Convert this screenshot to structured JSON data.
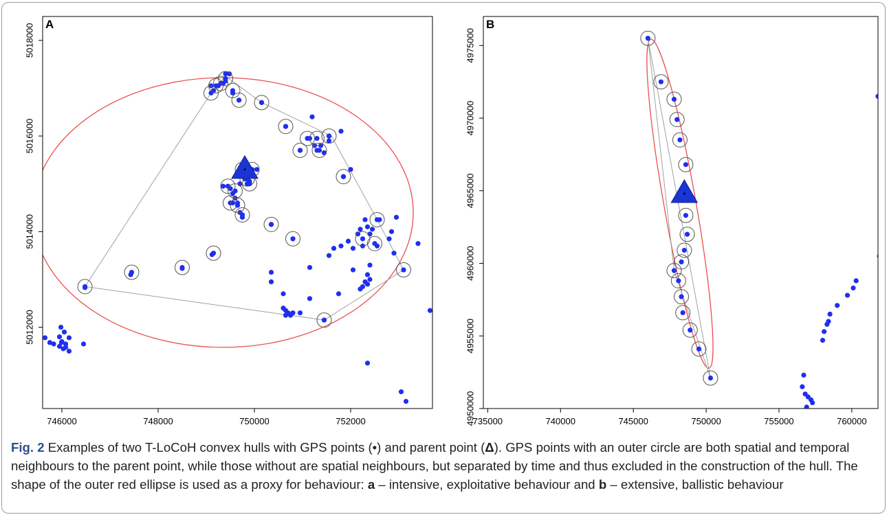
{
  "figure": {
    "colors": {
      "point": "#1f2ff0",
      "parent": "#1a35d6",
      "neighbour_ring": "#555555",
      "hull_line": "#a0a0a0",
      "ellipse": "#e8504a",
      "axis": "#000000"
    },
    "chart_data": [
      {
        "type": "scatter",
        "panel_label": "A",
        "title": "",
        "xlabel": "",
        "ylabel": "",
        "xlim": [
          745600,
          753700
        ],
        "ylim": [
          5010300,
          5018500
        ],
        "x_ticks": [
          746000,
          748000,
          750000,
          752000
        ],
        "y_ticks": [
          5012000,
          5014000,
          5016000,
          5018000
        ],
        "series": [
          {
            "marker": "point",
            "points": [
              [
                745650,
                5011780
              ],
              [
                745750,
                5011680
              ],
              [
                745830,
                5011650
              ],
              [
                745980,
                5012000
              ],
              [
                746050,
                5011900
              ],
              [
                745950,
                5011800
              ],
              [
                746000,
                5011700
              ],
              [
                746080,
                5011650
              ],
              [
                745950,
                5011600
              ],
              [
                746030,
                5011550
              ],
              [
                746080,
                5011580
              ],
              [
                746150,
                5011500
              ],
              [
                745990,
                5011680
              ],
              [
                746150,
                5011780
              ],
              [
                746450,
                5011650
              ],
              [
                746480,
                5012830
              ],
              [
                747430,
                5013100
              ],
              [
                748500,
                5013230
              ],
              [
                749120,
                5013520
              ],
              [
                749100,
                5017050
              ],
              [
                749150,
                5016950
              ],
              [
                749250,
                5017050
              ],
              [
                749350,
                5017100
              ],
              [
                749400,
                5017300
              ],
              [
                749480,
                5017300
              ],
              [
                749550,
                5016900
              ],
              [
                749680,
                5016750
              ],
              [
                749400,
                5017150
              ],
              [
                750150,
                5016700
              ],
              [
                750650,
                5016200
              ],
              [
                750950,
                5015700
              ],
              [
                751150,
                5015950
              ],
              [
                751200,
                5016400
              ],
              [
                751250,
                5015800
              ],
              [
                751300,
                5015700
              ],
              [
                751380,
                5015800
              ],
              [
                751450,
                5015650
              ],
              [
                751550,
                5016000
              ],
              [
                751800,
                5016100
              ],
              [
                751550,
                5015900
              ],
              [
                751850,
                5015150
              ],
              [
                752000,
                5015300
              ],
              [
                749350,
                5014950
              ],
              [
                749500,
                5014900
              ],
              [
                749550,
                5014800
              ],
              [
                749600,
                5014700
              ],
              [
                749550,
                5014600
              ],
              [
                749650,
                5014600
              ],
              [
                749700,
                5014400
              ],
              [
                749750,
                5014300
              ],
              [
                749700,
                5015000
              ],
              [
                749800,
                5015100
              ],
              [
                749850,
                5015000
              ],
              [
                749900,
                5015050
              ],
              [
                749950,
                5015250
              ],
              [
                750050,
                5015300
              ],
              [
                750350,
                5014150
              ],
              [
                750800,
                5013850
              ],
              [
                751150,
                5013250
              ],
              [
                751550,
                5013500
              ],
              [
                751650,
                5013650
              ],
              [
                751800,
                5013700
              ],
              [
                751950,
                5013800
              ],
              [
                752050,
                5013650
              ],
              [
                752150,
                5013950
              ],
              [
                752200,
                5014050
              ],
              [
                752250,
                5013700
              ],
              [
                752300,
                5014250
              ],
              [
                752350,
                5014100
              ],
              [
                752400,
                5013950
              ],
              [
                752450,
                5014050
              ],
              [
                752550,
                5013700
              ],
              [
                752800,
                5013850
              ],
              [
                752850,
                5014000
              ],
              [
                752950,
                5014300
              ],
              [
                753400,
                5013750
              ],
              [
                752900,
                5013550
              ],
              [
                752600,
                5014250
              ],
              [
                752250,
                5012850
              ],
              [
                752200,
                5012800
              ],
              [
                752300,
                5012950
              ],
              [
                752350,
                5013100
              ],
              [
                752400,
                5013300
              ],
              [
                752400,
                5013000
              ],
              [
                752350,
                5012900
              ],
              [
                752050,
                5013200
              ],
              [
                751750,
                5012700
              ],
              [
                751150,
                5012600
              ],
              [
                750350,
                5013150
              ],
              [
                750350,
                5012950
              ],
              [
                750600,
                5012700
              ],
              [
                750600,
                5012400
              ],
              [
                750700,
                5012300
              ],
              [
                750650,
                5012350
              ],
              [
                750800,
                5012300
              ],
              [
                750950,
                5012300
              ],
              [
                750650,
                5012250
              ],
              [
                750750,
                5012250
              ],
              [
                751450,
                5012150
              ],
              [
                752350,
                5011250
              ],
              [
                753050,
                5010650
              ],
              [
                753150,
                5010450
              ],
              [
                753650,
                5012350
              ],
              [
                753100,
                5013200
              ]
            ]
          },
          {
            "marker": "ringed",
            "points": [
              [
                749100,
                5016900
              ],
              [
                749200,
                5017050
              ],
              [
                749300,
                5017100
              ],
              [
                749400,
                5017200
              ],
              [
                749550,
                5016950
              ],
              [
                749680,
                5016750
              ],
              [
                750150,
                5016700
              ],
              [
                750650,
                5016200
              ],
              [
                750950,
                5015700
              ],
              [
                751100,
                5015950
              ],
              [
                751300,
                5015950
              ],
              [
                751350,
                5015700
              ],
              [
                751550,
                5016000
              ],
              [
                751850,
                5015150
              ],
              [
                749450,
                5014950
              ],
              [
                749600,
                5014850
              ],
              [
                749500,
                5014600
              ],
              [
                749650,
                5014550
              ],
              [
                749750,
                5014350
              ],
              [
                749750,
                5015300
              ],
              [
                749950,
                5015300
              ],
              [
                749850,
                5015100
              ],
              [
                749900,
                5015000
              ],
              [
                750350,
                5014150
              ],
              [
                750800,
                5013850
              ],
              [
                749150,
                5013550
              ],
              [
                748500,
                5013250
              ],
              [
                747450,
                5013150
              ],
              [
                746480,
                5012850
              ],
              [
                751450,
                5012150
              ],
              [
                753100,
                5013200
              ],
              [
                752550,
                5014250
              ],
              [
                752500,
                5013750
              ],
              [
                752250,
                5013850
              ]
            ]
          }
        ],
        "parent_point": [
          749800,
          5015300
        ],
        "hull": [
          [
            746480,
            5012850
          ],
          [
            749100,
            5016900
          ],
          [
            749400,
            5017250
          ],
          [
            750150,
            5016700
          ],
          [
            751600,
            5016000
          ],
          [
            752550,
            5014250
          ],
          [
            753100,
            5013200
          ],
          [
            751450,
            5012150
          ],
          [
            746480,
            5012850
          ]
        ],
        "ellipse": {
          "center": [
            749350,
            5014400
          ],
          "semi_axis_x": 3950,
          "semi_axis_y": 2820
        }
      },
      {
        "type": "scatter",
        "panel_label": "B",
        "title": "",
        "xlabel": "",
        "ylabel": "",
        "xlim": [
          734700,
          761800
        ],
        "ylim": [
          4950000,
          4977000
        ],
        "x_ticks": [
          735000,
          740000,
          745000,
          750000,
          755000,
          760000
        ],
        "y_ticks": [
          4950000,
          4955000,
          4960000,
          4965000,
          4970000,
          4975000
        ],
        "series": [
          {
            "marker": "ringed",
            "points": [
              [
                746000,
                4975500
              ],
              [
                746900,
                4972500
              ],
              [
                747800,
                4971300
              ],
              [
                748000,
                4969900
              ],
              [
                748200,
                4968500
              ],
              [
                748600,
                4966800
              ],
              [
                748600,
                4963300
              ],
              [
                748700,
                4962000
              ],
              [
                748500,
                4960900
              ],
              [
                748300,
                4960100
              ],
              [
                747800,
                4959500
              ],
              [
                748100,
                4958800
              ],
              [
                748300,
                4957700
              ],
              [
                748400,
                4956600
              ],
              [
                748900,
                4955400
              ],
              [
                749500,
                4954100
              ],
              [
                750300,
                4952100
              ]
            ]
          },
          {
            "marker": "point",
            "points": [
              [
                756700,
                4952300
              ],
              [
                756600,
                4951500
              ],
              [
                756800,
                4951000
              ],
              [
                757000,
                4950800
              ],
              [
                757200,
                4950600
              ],
              [
                757300,
                4950400
              ],
              [
                756900,
                4950100
              ],
              [
                758000,
                4954700
              ],
              [
                758100,
                4955300
              ],
              [
                758300,
                4955800
              ],
              [
                758400,
                4956000
              ],
              [
                758500,
                4956500
              ],
              [
                759000,
                4957100
              ],
              [
                759700,
                4957800
              ],
              [
                760100,
                4958300
              ],
              [
                760300,
                4958800
              ],
              [
                761900,
                4960500
              ],
              [
                761800,
                4971500
              ]
            ]
          }
        ],
        "parent_point": [
          748500,
          4964800
        ],
        "hull": [
          [
            746000,
            4975500
          ],
          [
            750300,
            4952100
          ],
          [
            747800,
            4959500
          ],
          [
            746000,
            4975500
          ]
        ],
        "ellipse": {
          "center": [
            748200,
            4964100
          ],
          "semi_axis_x": 1100,
          "semi_axis_y": 11500,
          "rotation_deg": -10
        }
      }
    ]
  },
  "caption": {
    "label": "Fig. 2",
    "text_1": " Examples of two T-LoCoH convex hulls with GPS points (•) and parent point (",
    "delta_symbol": "Δ",
    "text_2": "). GPS points with an outer circle are both spatial and temporal neighbours to the parent point, while those without are spatial neighbours, but separated by time and thus excluded in the construction of the hull. The shape of the outer red ellipse is used as a proxy for behaviour: ",
    "key_a": "a",
    "desc_a": " – intensive, exploitative behaviour and ",
    "key_b": "b",
    "desc_b": " – extensive, ballistic behaviour"
  }
}
